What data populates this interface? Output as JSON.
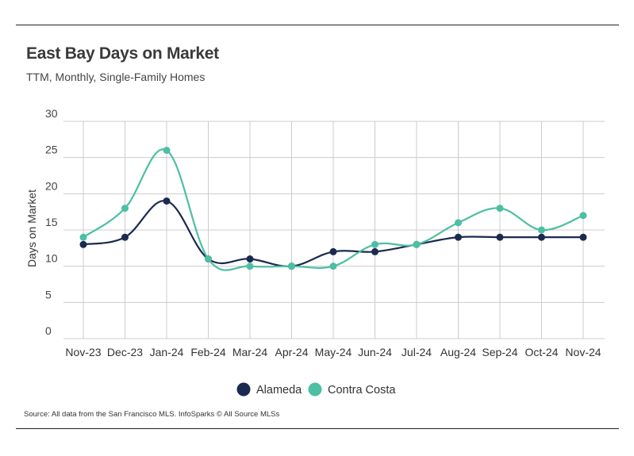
{
  "header": {
    "title": "East Bay Days on Market",
    "subtitle": "TTM, Monthly, Single-Family Homes"
  },
  "footer": {
    "source": "Source:  All data from the San Francisco MLS. InfoSparks © All Source MLSs"
  },
  "chart_data": {
    "type": "line",
    "ylabel": "Days on Market",
    "xlabel": "",
    "ylim": [
      0,
      30
    ],
    "yticks": [
      0,
      5,
      10,
      15,
      20,
      25,
      30
    ],
    "grid": true,
    "legend_position": "bottom-center",
    "x": [
      "Nov-23",
      "Dec-23",
      "Jan-24",
      "Feb-24",
      "Mar-24",
      "Apr-24",
      "May-24",
      "Jun-24",
      "Jul-24",
      "Aug-24",
      "Sep-24",
      "Oct-24",
      "Nov-24"
    ],
    "series": [
      {
        "name": "Alameda",
        "color": "#1b2a4e",
        "values": [
          13,
          14,
          19,
          11,
          11,
          10,
          12,
          12,
          13,
          14,
          14,
          14,
          14
        ]
      },
      {
        "name": "Contra Costa",
        "color": "#4dbfa3",
        "values": [
          14,
          18,
          26,
          11,
          10,
          10,
          10,
          13,
          13,
          16,
          18,
          15,
          17
        ]
      }
    ]
  }
}
